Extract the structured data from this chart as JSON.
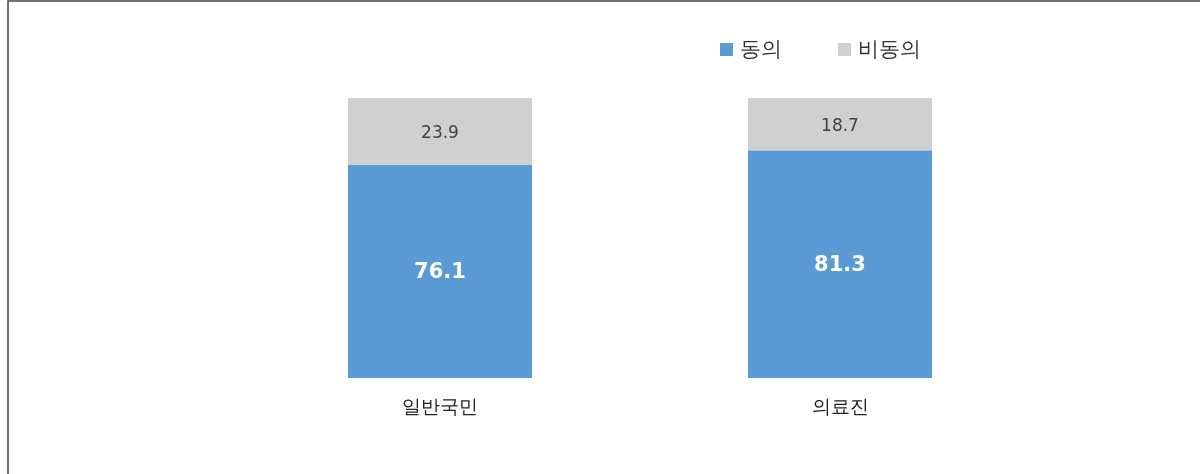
{
  "chart_data": {
    "type": "bar",
    "stacked": true,
    "categories": [
      "일반국민",
      "의료진"
    ],
    "series": [
      {
        "name": "동의",
        "color": "#5b9bd5",
        "values": [
          76.1,
          81.3
        ]
      },
      {
        "name": "비동의",
        "color": "#d0d0d0",
        "values": [
          23.9,
          18.7
        ]
      }
    ],
    "data_labels": true,
    "legend": "top right"
  }
}
